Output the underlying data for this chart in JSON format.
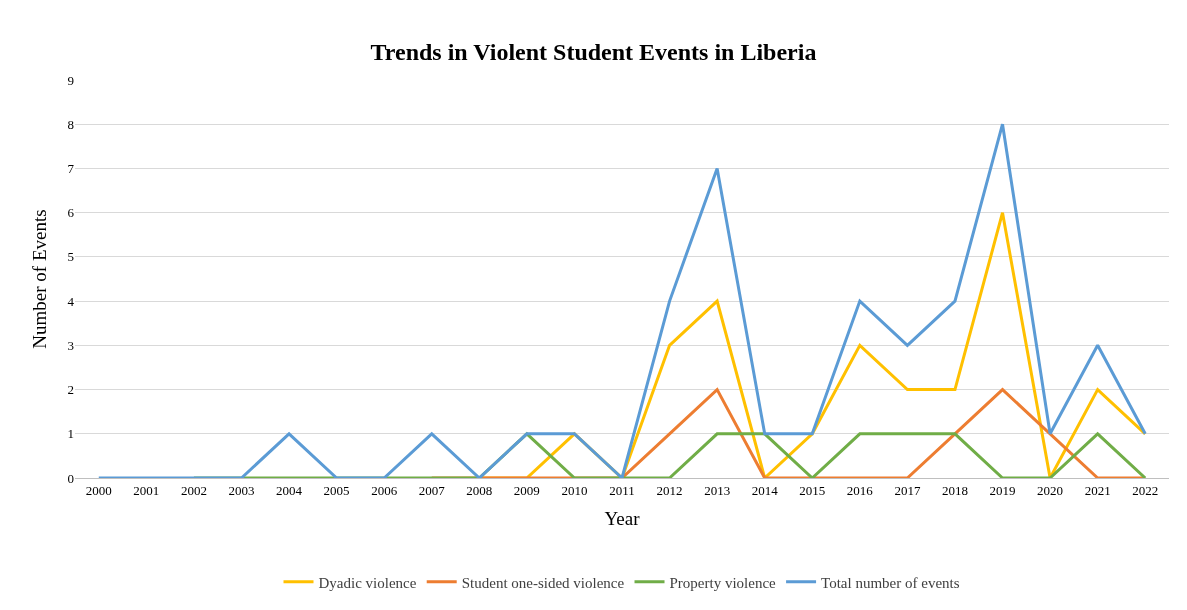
{
  "chart_data": {
    "type": "line",
    "title": "Trends in Violent Student Events in Liberia",
    "xlabel": "Year",
    "ylabel": "Number of Events",
    "categories": [
      "2000",
      "2001",
      "2002",
      "2003",
      "2004",
      "2005",
      "2006",
      "2007",
      "2008",
      "2009",
      "2010",
      "2011",
      "2012",
      "2013",
      "2014",
      "2015",
      "2016",
      "2017",
      "2018",
      "2019",
      "2020",
      "2021",
      "2022"
    ],
    "series": [
      {
        "name": "Dyadic violence",
        "color": "#ffc000",
        "values": [
          null,
          null,
          null,
          null,
          null,
          null,
          null,
          null,
          0,
          0,
          1,
          0,
          3,
          4,
          0,
          1,
          3,
          2,
          2,
          6,
          0,
          2,
          1
        ]
      },
      {
        "name": "Student one-sided violence",
        "color": "#ed7d31",
        "values": [
          null,
          null,
          null,
          null,
          null,
          null,
          null,
          0,
          0,
          0,
          0,
          0,
          1,
          2,
          0,
          0,
          0,
          0,
          1,
          2,
          1,
          0,
          0
        ]
      },
      {
        "name": "Property violence",
        "color": "#70ad47",
        "values": [
          null,
          null,
          0,
          0,
          0,
          0,
          0,
          0,
          0,
          1,
          0,
          0,
          0,
          1,
          1,
          0,
          1,
          1,
          1,
          0,
          0,
          1,
          0
        ]
      },
      {
        "name": "Total number of events",
        "color": "#5b9bd5",
        "values": [
          0,
          0,
          0,
          0,
          1,
          0,
          0,
          1,
          0,
          1,
          1,
          0,
          4,
          7,
          1,
          1,
          4,
          3,
          4,
          8,
          1,
          3,
          1
        ]
      }
    ],
    "ylim": [
      0,
      9
    ],
    "yticks": [
      0,
      1,
      2,
      3,
      4,
      5,
      6,
      7,
      8,
      9
    ],
    "grid": "y",
    "legend": "bottom",
    "marker": "none",
    "line_style": "solid"
  }
}
